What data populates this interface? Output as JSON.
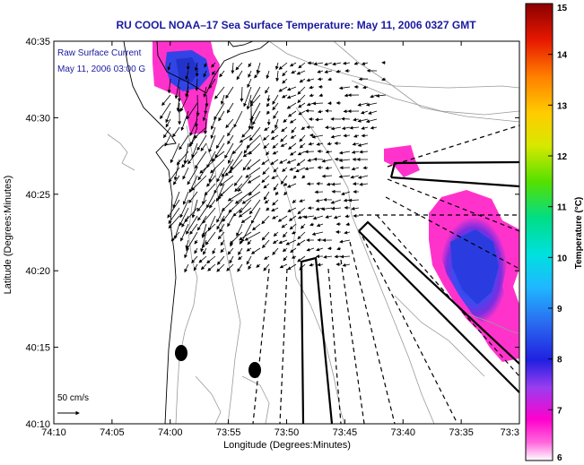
{
  "title": "RU COOL  NOAA–17  Sea Surface Temperature:  May 11, 2006 0327 GMT",
  "legend": {
    "line1": "Raw Surface Current",
    "line2": "May 11, 2006 03:00 G"
  },
  "scale_label": "50 cm/s",
  "xlabel": "Longitude (Degrees:Minutes)",
  "ylabel": "Latitude (Degrees:Minutes)",
  "x_ticks": [
    "74:10",
    "74:05",
    "74:00",
    "73:55",
    "73:50",
    "73:45",
    "73:40",
    "73:35",
    "73:3"
  ],
  "y_ticks": [
    "40:35",
    "40:30",
    "40:25",
    "40:20",
    "40:15",
    "40:10"
  ],
  "colorbar": {
    "label": "Temperature (°C)",
    "ticks": [
      "15",
      "14",
      "13",
      "12",
      "11",
      "10",
      "9",
      "8",
      "7",
      "6"
    ],
    "min": 6,
    "max": 15
  },
  "colors": {
    "title": "#1a1aa0",
    "land": "#ffffff",
    "bathymetry": "#9a9a9a",
    "arrows": "#000000",
    "sst_warm": "#ff33cc",
    "sst_cold": "#2d3ce8"
  }
}
